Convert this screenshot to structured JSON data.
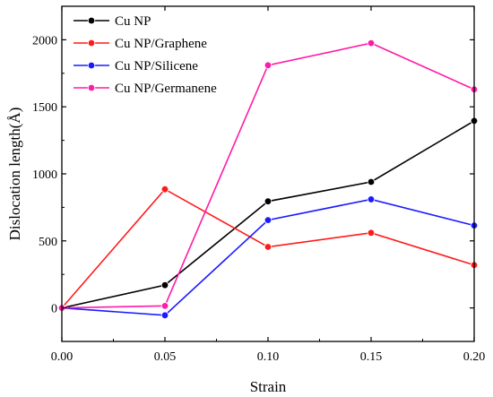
{
  "chart_data": {
    "type": "line",
    "xlabel": "Strain",
    "ylabel": "Dislocation length(Å)",
    "x": [
      0.0,
      0.05,
      0.1,
      0.15,
      0.2
    ],
    "xlim": [
      0.0,
      0.2
    ],
    "ylim": [
      -250,
      2250
    ],
    "x_ticks": [
      "0.00",
      "0.05",
      "0.10",
      "0.15",
      "0.20"
    ],
    "y_ticks": [
      "0",
      "500",
      "1000",
      "1500",
      "2000"
    ],
    "y_tick_values": [
      0,
      500,
      1000,
      1500,
      2000
    ],
    "grid": false,
    "legend_position": "top-left",
    "series": [
      {
        "name": "Cu NP",
        "color": "#000000",
        "values": [
          0,
          170,
          795,
          940,
          1395
        ]
      },
      {
        "name": "Cu NP/Graphene",
        "color": "#ff1a1a",
        "values": [
          0,
          885,
          455,
          560,
          320
        ]
      },
      {
        "name": "Cu NP/Silicene",
        "color": "#1a1aff",
        "values": [
          0,
          -55,
          655,
          810,
          615
        ]
      },
      {
        "name": "Cu NP/Germanene",
        "color": "#ff1aa8",
        "values": [
          0,
          15,
          1810,
          1975,
          1630
        ]
      }
    ]
  }
}
